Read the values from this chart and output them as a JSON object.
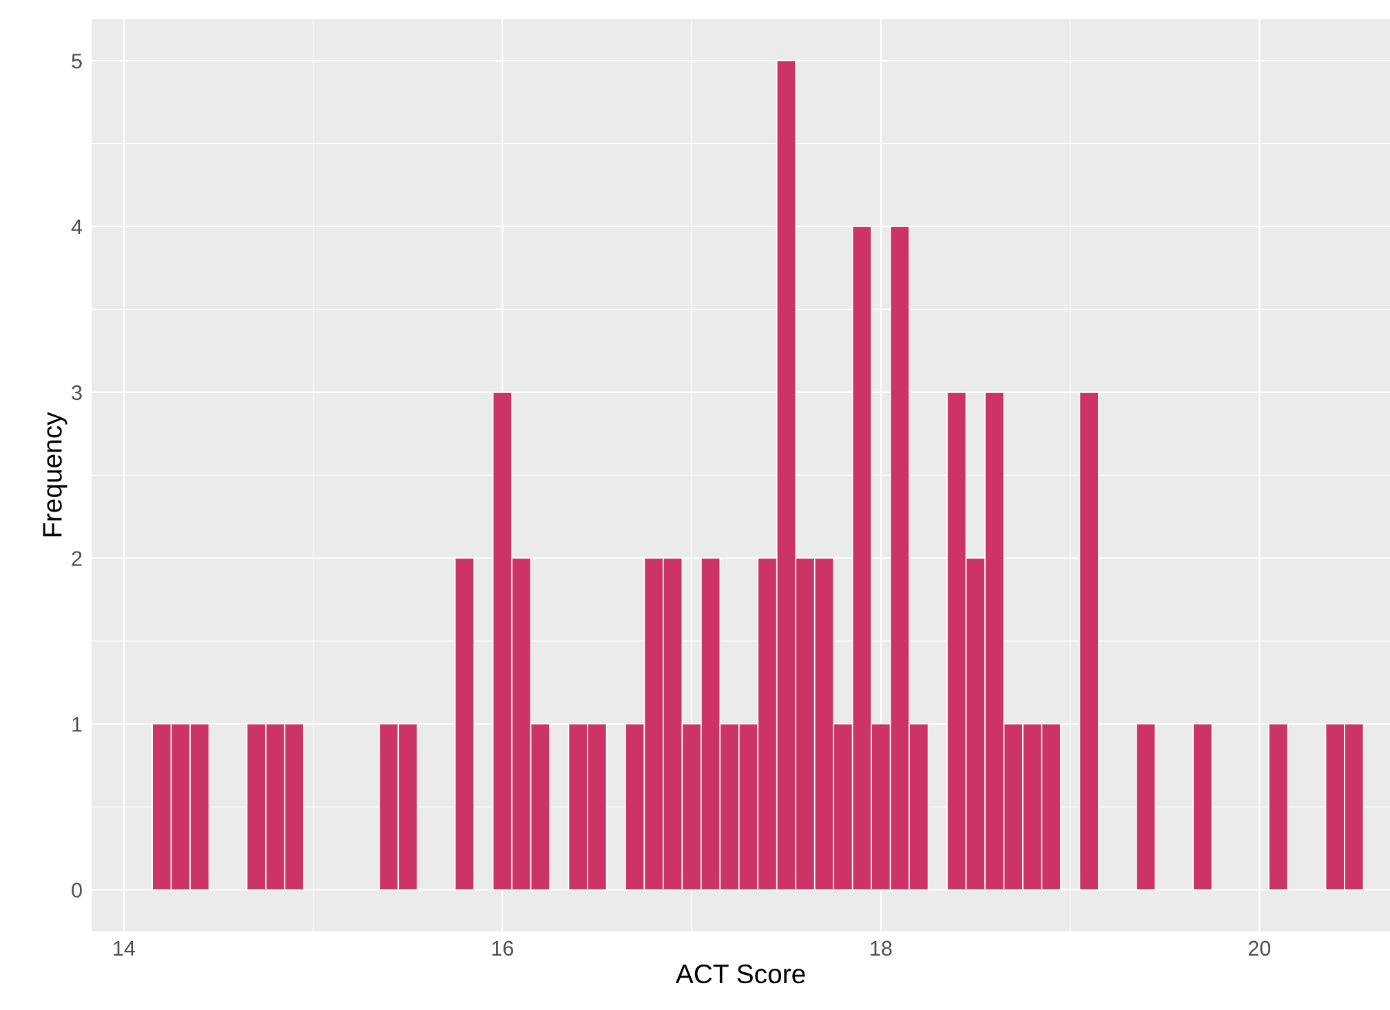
{
  "chart_data": {
    "type": "histogram",
    "xlabel": "ACT Score",
    "ylabel": "Frequency",
    "color": "#cc3366",
    "bins": [
      14.15,
      14.25,
      14.35,
      14.45,
      14.55,
      14.65,
      14.75,
      14.85,
      14.95,
      15.05,
      15.15,
      15.25,
      15.35,
      15.45,
      15.55,
      15.65,
      15.75,
      15.85,
      15.95,
      16.05,
      16.15,
      16.25,
      16.35,
      16.45,
      16.55,
      16.65,
      16.75,
      16.85,
      16.95,
      17.05,
      17.15,
      17.25,
      17.35,
      17.45,
      17.55,
      17.65,
      17.75,
      17.85,
      17.95,
      18.05,
      18.15,
      18.25,
      18.35,
      18.45,
      18.55,
      18.65,
      18.75,
      18.85,
      18.95,
      19.05,
      19.15,
      19.25,
      19.35,
      19.45,
      19.55,
      19.65,
      19.75,
      19.85,
      19.95,
      20.05,
      20.15,
      20.25,
      20.35,
      20.45,
      20.55
    ],
    "values": [
      1,
      1,
      1,
      0,
      0,
      1,
      1,
      1,
      0,
      0,
      0,
      0,
      1,
      1,
      0,
      0,
      2,
      0,
      3,
      2,
      1,
      0,
      1,
      1,
      0,
      1,
      2,
      2,
      1,
      2,
      1,
      1,
      2,
      5,
      2,
      2,
      1,
      4,
      1,
      4,
      1,
      0,
      3,
      2,
      3,
      1,
      1,
      1,
      0,
      3,
      0,
      0,
      1,
      0,
      0,
      1,
      0,
      0,
      0,
      1,
      0,
      0,
      1,
      1
    ],
    "xlim": [
      13.83,
      20.69
    ],
    "ylim": [
      -0.25,
      5.25
    ],
    "xticks": [
      14,
      16,
      18,
      20
    ],
    "yticks": [
      0,
      1,
      2,
      3,
      4,
      5
    ],
    "grid": true
  }
}
